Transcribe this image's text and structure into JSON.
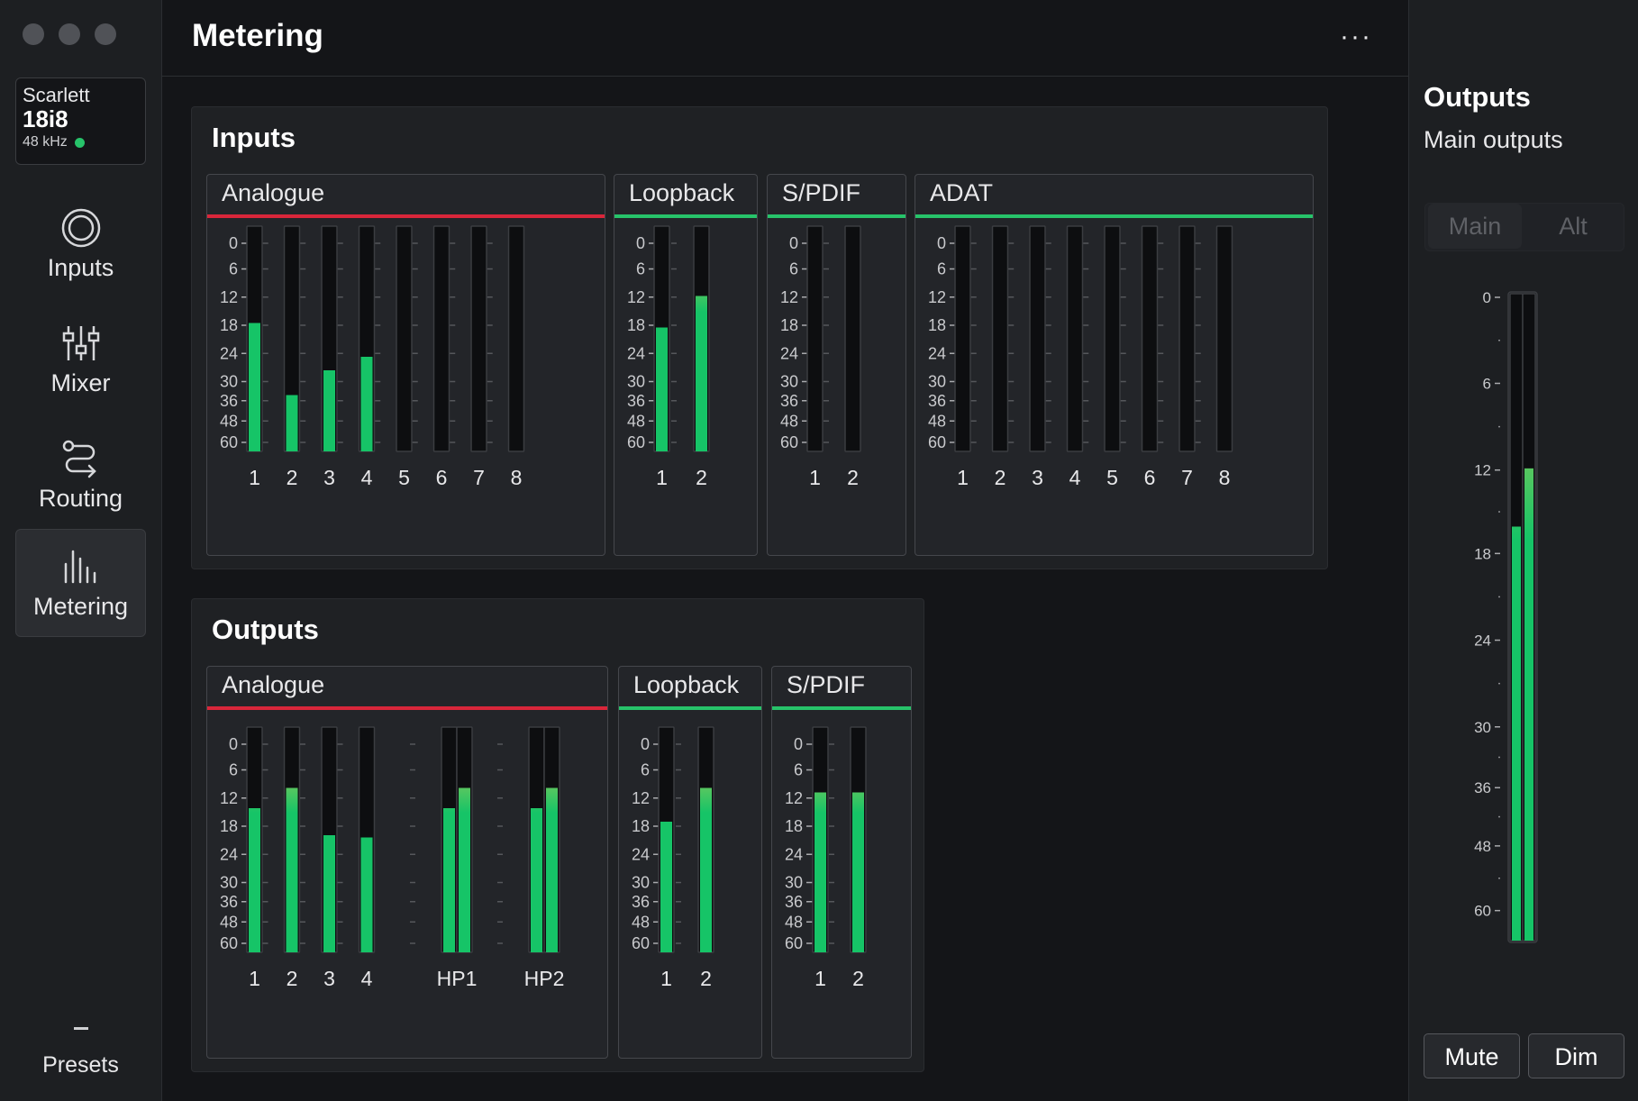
{
  "window": {
    "title": "Metering",
    "more_label": "···"
  },
  "device": {
    "brand": "Scarlett",
    "model": "18i8",
    "sample_rate": "48 kHz",
    "status_color": "#27c36a"
  },
  "sidebar": {
    "items": [
      {
        "label": "Inputs",
        "icon": "inputs-ring-icon"
      },
      {
        "label": "Mixer",
        "icon": "mixer-sliders-icon"
      },
      {
        "label": "Routing",
        "icon": "routing-icon"
      },
      {
        "label": "Metering",
        "icon": "metering-bars-icon",
        "active": true
      }
    ],
    "presets_label": "Presets"
  },
  "inputs_panel": {
    "title": "Inputs",
    "scale": [
      "0",
      "6",
      "12",
      "18",
      "24",
      "30",
      "36",
      "48",
      "60"
    ],
    "groups": [
      {
        "label": "Analogue",
        "accent": "#d9263a",
        "channels": [
          {
            "label": "1",
            "level": 0.57
          },
          {
            "label": "2",
            "level": 0.25
          },
          {
            "label": "3",
            "level": 0.36
          },
          {
            "label": "4",
            "level": 0.42
          },
          {
            "label": "5",
            "level": 0
          },
          {
            "label": "6",
            "level": 0
          },
          {
            "label": "7",
            "level": 0
          },
          {
            "label": "8",
            "level": 0
          }
        ]
      },
      {
        "label": "Loopback",
        "accent": "#27c36a",
        "channels": [
          {
            "label": "1",
            "level": 0.55
          },
          {
            "label": "2",
            "level": 0.69
          }
        ]
      },
      {
        "label": "S/PDIF",
        "accent": "#27c36a",
        "channels": [
          {
            "label": "1",
            "level": 0
          },
          {
            "label": "2",
            "level": 0
          }
        ]
      },
      {
        "label": "ADAT",
        "accent": "#27c36a",
        "channels": [
          {
            "label": "1",
            "level": 0
          },
          {
            "label": "2",
            "level": 0
          },
          {
            "label": "3",
            "level": 0
          },
          {
            "label": "4",
            "level": 0
          },
          {
            "label": "5",
            "level": 0
          },
          {
            "label": "6",
            "level": 0
          },
          {
            "label": "7",
            "level": 0
          },
          {
            "label": "8",
            "level": 0
          }
        ]
      }
    ]
  },
  "outputs_panel": {
    "title": "Outputs",
    "scale": [
      "0",
      "6",
      "12",
      "18",
      "24",
      "30",
      "36",
      "48",
      "60"
    ],
    "groups": [
      {
        "label": "Analogue",
        "accent": "#d9263a",
        "channels": [
          {
            "label": "1",
            "level": 0.64
          },
          {
            "label": "2",
            "level": 0.73
          },
          {
            "label": "3",
            "level": 0.52
          },
          {
            "label": "4",
            "level": 0.51
          },
          {
            "label": "HP1",
            "stereo": true,
            "levels": [
              0.64,
              0.73
            ]
          },
          {
            "label": "HP2",
            "stereo": true,
            "levels": [
              0.64,
              0.73
            ]
          }
        ]
      },
      {
        "label": "Loopback",
        "accent": "#27c36a",
        "channels": [
          {
            "label": "1",
            "level": 0.58
          },
          {
            "label": "2",
            "level": 0.73
          }
        ]
      },
      {
        "label": "S/PDIF",
        "accent": "#27c36a",
        "channels": [
          {
            "label": "1",
            "level": 0.71
          },
          {
            "label": "2",
            "level": 0.71
          }
        ]
      }
    ]
  },
  "right_panel": {
    "title": "Outputs",
    "subtitle": "Main outputs",
    "tabs": [
      {
        "label": "Main",
        "selected": true
      },
      {
        "label": "Alt",
        "selected": false
      }
    ],
    "main_meter": {
      "scale": [
        "0",
        "6",
        "12",
        "18",
        "24",
        "30",
        "36",
        "48",
        "60"
      ],
      "levels": [
        0.64,
        0.73
      ]
    },
    "mute_label": "Mute",
    "dim_label": "Dim"
  },
  "colors": {
    "meter_green": "#16c467",
    "meter_yellow": "#d8c446",
    "analogue_accent": "#d9263a",
    "digital_accent": "#27c36a"
  }
}
